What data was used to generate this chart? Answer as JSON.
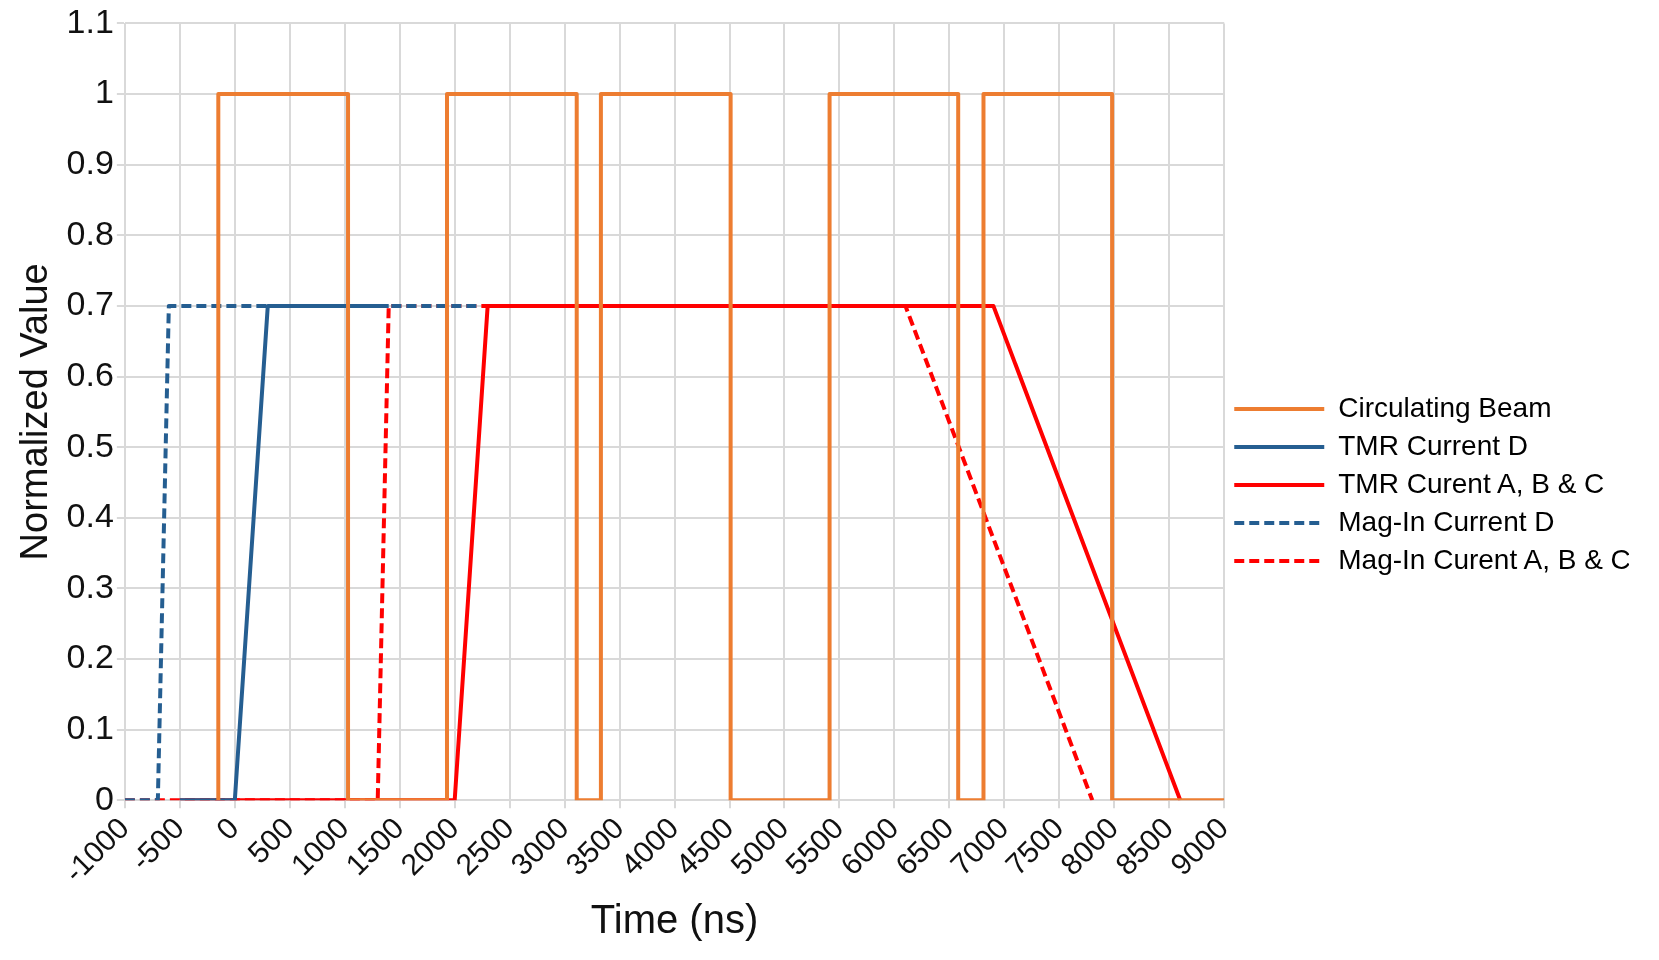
{
  "chart_data": {
    "type": "line",
    "xlabel": "Time (ns)",
    "ylabel": "Normalized Value",
    "xlim": [
      -1000,
      9000
    ],
    "xticks": [
      -1000,
      -500,
      0,
      500,
      1000,
      1500,
      2000,
      2500,
      3000,
      3500,
      4000,
      4500,
      5000,
      5500,
      6000,
      6500,
      7000,
      7500,
      8000,
      8500,
      9000
    ],
    "ylim": [
      0,
      1.1
    ],
    "yticks": [
      0,
      0.1,
      0.2,
      0.3,
      0.4,
      0.5,
      0.6,
      0.7,
      0.8,
      0.9,
      1,
      1.1
    ],
    "grid": true,
    "legend": "right",
    "marker": "none",
    "series": [
      {
        "name": "Circulating Beam",
        "color": "#ed7d31",
        "line_style": "solid",
        "x": [
          -150,
          -150,
          1030,
          1030,
          1930,
          1930,
          3110,
          3110,
          3330,
          3330,
          4510,
          4510,
          5410,
          5410,
          6580,
          6580,
          6810,
          6810,
          7980,
          7980,
          9000
        ],
        "values": [
          0,
          1,
          1,
          0,
          0,
          1,
          1,
          0,
          0,
          1,
          1,
          0,
          0,
          1,
          1,
          0,
          0,
          1,
          1,
          0,
          0
        ]
      },
      {
        "name": "TMR Current D",
        "color": "#255e91",
        "line_style": "solid",
        "x": [
          -500,
          0,
          300,
          1400
        ],
        "values": [
          0,
          0,
          0.7,
          0.7
        ]
      },
      {
        "name": "TMR Curent A, B & C",
        "color": "#ff0000",
        "line_style": "solid",
        "x": [
          -500,
          2000,
          2300,
          6900,
          8600
        ],
        "values": [
          0,
          0,
          0.7,
          0.7,
          0
        ]
      },
      {
        "name": "Mag-In Current D",
        "color": "#255e91",
        "line_style": "dashed",
        "x": [
          -1000,
          -700,
          -600,
          2200
        ],
        "values": [
          0,
          0,
          0.7,
          0.7
        ]
      },
      {
        "name": "Mag-In Curent A, B & C",
        "color": "#ff0000",
        "line_style": "dashed",
        "x": [
          -1000,
          1300,
          1400,
          6100,
          7800
        ],
        "values": [
          0,
          0,
          0.7,
          0.7,
          0
        ]
      }
    ]
  }
}
